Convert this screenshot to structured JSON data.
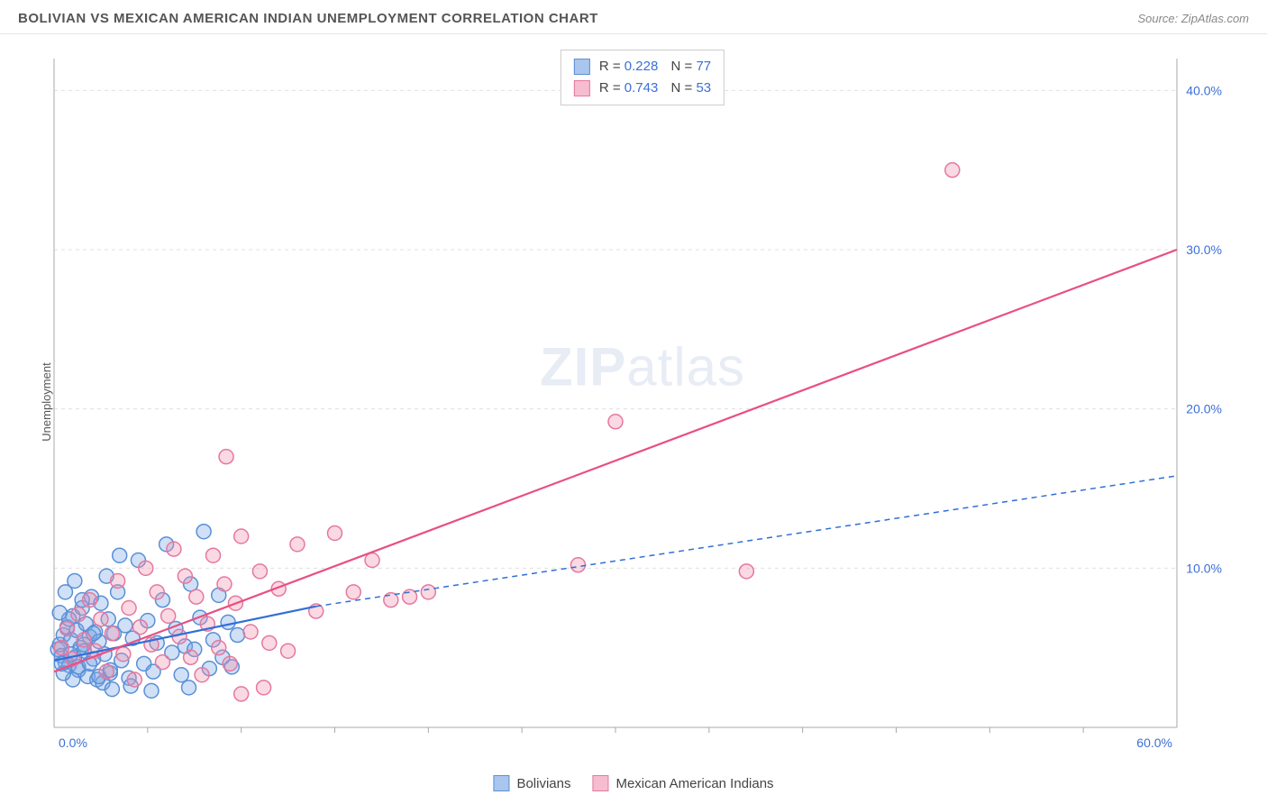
{
  "header": {
    "title": "BOLIVIAN VS MEXICAN AMERICAN INDIAN UNEMPLOYMENT CORRELATION CHART",
    "source": "Source: ZipAtlas.com"
  },
  "watermark": {
    "zip": "ZIP",
    "atlas": "atlas"
  },
  "chart": {
    "type": "scatter",
    "y_label": "Unemployment",
    "xlim": [
      0,
      60
    ],
    "ylim": [
      0,
      42
    ],
    "x_ticks": [
      0,
      60
    ],
    "x_tick_labels": [
      "0.0%",
      "60.0%"
    ],
    "y_ticks": [
      10,
      20,
      30,
      40
    ],
    "y_tick_labels": [
      "10.0%",
      "20.0%",
      "30.0%",
      "40.0%"
    ],
    "tick_color": "#3b6fd8",
    "tick_fontsize": 14,
    "grid_color": "#e0e0e0",
    "axis_color": "#aaaaaa",
    "background_color": "#ffffff",
    "marker_radius": 8,
    "marker_stroke_width": 1.5,
    "series": [
      {
        "name": "Bolivians",
        "fill": "rgba(120,165,230,0.35)",
        "stroke": "#5a8fd6",
        "swatch_fill": "#a9c6ee",
        "swatch_border": "#5a8fd6",
        "r": "0.228",
        "n": "77",
        "trend": {
          "x1": 0,
          "y1": 4.2,
          "x2": 14,
          "y2": 7.6,
          "dash_x2": 60,
          "dash_y2": 15.8,
          "color": "#2f6fd8",
          "width": 2.2
        },
        "points": [
          [
            0.2,
            4.9
          ],
          [
            0.3,
            5.2
          ],
          [
            0.4,
            4.5
          ],
          [
            0.5,
            5.8
          ],
          [
            0.6,
            4.1
          ],
          [
            0.7,
            6.3
          ],
          [
            0.8,
            3.9
          ],
          [
            0.9,
            5.5
          ],
          [
            1.0,
            7.0
          ],
          [
            1.1,
            4.4
          ],
          [
            1.2,
            6.1
          ],
          [
            1.3,
            3.6
          ],
          [
            1.4,
            5.0
          ],
          [
            1.5,
            7.5
          ],
          [
            1.6,
            4.8
          ],
          [
            1.7,
            6.5
          ],
          [
            1.8,
            3.2
          ],
          [
            1.9,
            5.7
          ],
          [
            2.0,
            8.2
          ],
          [
            2.1,
            4.3
          ],
          [
            2.2,
            6.0
          ],
          [
            2.3,
            3.0
          ],
          [
            2.4,
            5.4
          ],
          [
            2.5,
            7.8
          ],
          [
            2.7,
            4.6
          ],
          [
            2.9,
            6.8
          ],
          [
            3.0,
            3.4
          ],
          [
            3.2,
            5.9
          ],
          [
            3.4,
            8.5
          ],
          [
            3.6,
            4.2
          ],
          [
            3.8,
            6.4
          ],
          [
            4.0,
            3.1
          ],
          [
            4.2,
            5.6
          ],
          [
            4.5,
            10.5
          ],
          [
            4.8,
            4.0
          ],
          [
            5.0,
            6.7
          ],
          [
            5.3,
            3.5
          ],
          [
            5.5,
            5.3
          ],
          [
            5.8,
            8.0
          ],
          [
            6.0,
            11.5
          ],
          [
            6.3,
            4.7
          ],
          [
            6.5,
            6.2
          ],
          [
            6.8,
            3.3
          ],
          [
            7.0,
            5.1
          ],
          [
            7.3,
            9.0
          ],
          [
            7.5,
            4.9
          ],
          [
            7.8,
            6.9
          ],
          [
            8.0,
            12.3
          ],
          [
            8.3,
            3.7
          ],
          [
            8.5,
            5.5
          ],
          [
            8.8,
            8.3
          ],
          [
            9.0,
            4.4
          ],
          [
            9.3,
            6.6
          ],
          [
            9.5,
            3.8
          ],
          [
            9.8,
            5.8
          ],
          [
            7.2,
            2.5
          ],
          [
            2.6,
            2.8
          ],
          [
            3.1,
            2.4
          ],
          [
            4.1,
            2.6
          ],
          [
            5.2,
            2.3
          ],
          [
            1.0,
            3.0
          ],
          [
            0.5,
            3.4
          ],
          [
            1.3,
            3.8
          ],
          [
            1.9,
            4.0
          ],
          [
            2.4,
            3.2
          ],
          [
            3.0,
            3.6
          ],
          [
            0.8,
            6.8
          ],
          [
            1.5,
            8.0
          ],
          [
            0.3,
            7.2
          ],
          [
            1.1,
            9.2
          ],
          [
            0.6,
            8.5
          ],
          [
            2.8,
            9.5
          ],
          [
            3.5,
            10.8
          ],
          [
            0.4,
            4.0
          ],
          [
            0.9,
            4.6
          ],
          [
            1.6,
            5.2
          ],
          [
            2.1,
            5.9
          ]
        ]
      },
      {
        "name": "Mexican American Indians",
        "fill": "rgba(240,145,175,0.35)",
        "stroke": "#e578a0",
        "swatch_fill": "#f6bcd0",
        "swatch_border": "#e578a0",
        "r": "0.743",
        "n": "53",
        "trend": {
          "x1": 0,
          "y1": 3.5,
          "x2": 60,
          "y2": 30.0,
          "color": "#e84f82",
          "width": 2.2
        },
        "points": [
          [
            0.4,
            5.0
          ],
          [
            0.7,
            6.2
          ],
          [
            1.0,
            4.3
          ],
          [
            1.3,
            7.1
          ],
          [
            1.6,
            5.5
          ],
          [
            1.9,
            8.0
          ],
          [
            2.2,
            4.8
          ],
          [
            2.5,
            6.8
          ],
          [
            2.8,
            3.5
          ],
          [
            3.1,
            5.9
          ],
          [
            3.4,
            9.2
          ],
          [
            3.7,
            4.6
          ],
          [
            4.0,
            7.5
          ],
          [
            4.3,
            3.0
          ],
          [
            4.6,
            6.3
          ],
          [
            4.9,
            10.0
          ],
          [
            5.2,
            5.2
          ],
          [
            5.5,
            8.5
          ],
          [
            5.8,
            4.1
          ],
          [
            6.1,
            7.0
          ],
          [
            6.4,
            11.2
          ],
          [
            6.7,
            5.7
          ],
          [
            7.0,
            9.5
          ],
          [
            7.3,
            4.4
          ],
          [
            7.6,
            8.2
          ],
          [
            7.9,
            3.3
          ],
          [
            8.2,
            6.5
          ],
          [
            8.5,
            10.8
          ],
          [
            8.8,
            5.0
          ],
          [
            9.1,
            9.0
          ],
          [
            9.4,
            4.0
          ],
          [
            9.7,
            7.8
          ],
          [
            10.0,
            12.0
          ],
          [
            10.5,
            6.0
          ],
          [
            11.0,
            9.8
          ],
          [
            11.5,
            5.3
          ],
          [
            12.0,
            8.7
          ],
          [
            12.5,
            4.8
          ],
          [
            13.0,
            11.5
          ],
          [
            14.0,
            7.3
          ],
          [
            15.0,
            12.2
          ],
          [
            16.0,
            8.5
          ],
          [
            17.0,
            10.5
          ],
          [
            18.0,
            8.0
          ],
          [
            10.0,
            2.1
          ],
          [
            11.2,
            2.5
          ],
          [
            9.2,
            17.0
          ],
          [
            19.0,
            8.2
          ],
          [
            20.0,
            8.5
          ],
          [
            28.0,
            10.2
          ],
          [
            30.0,
            19.2
          ],
          [
            37.0,
            9.8
          ],
          [
            48.0,
            35.0
          ]
        ]
      }
    ]
  }
}
